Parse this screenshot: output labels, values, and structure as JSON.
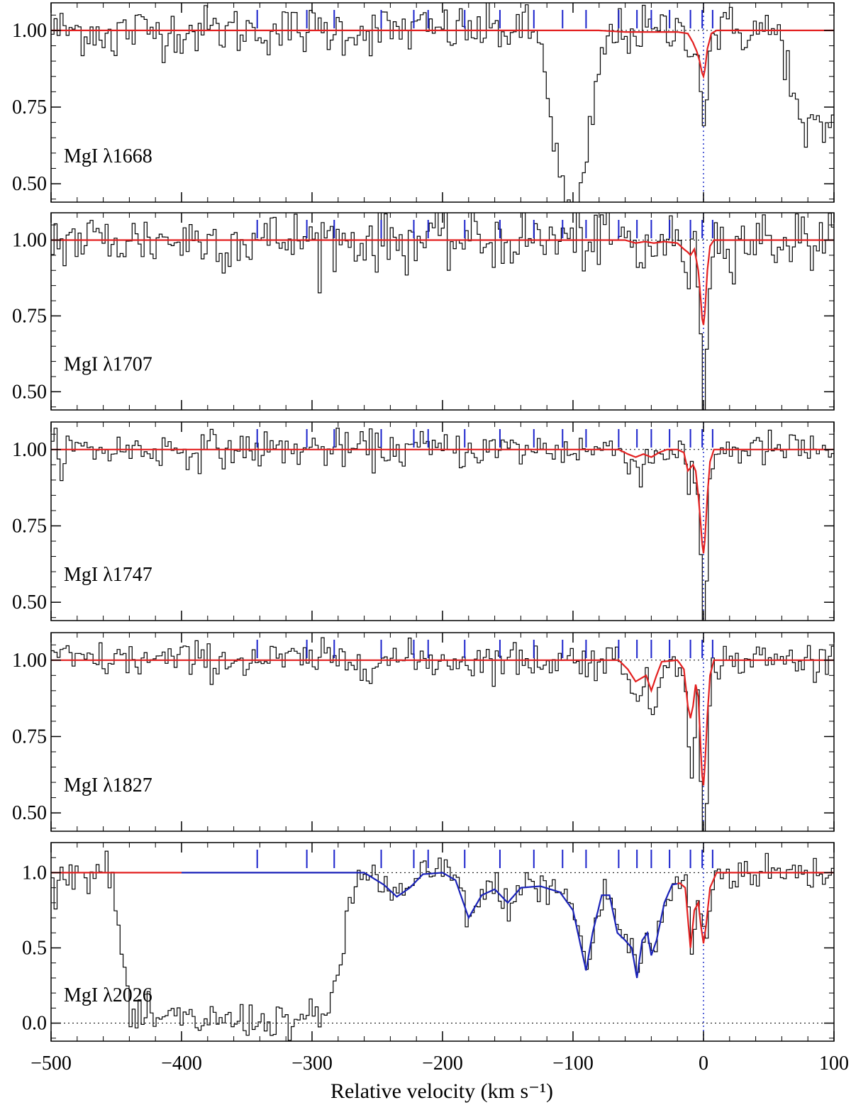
{
  "chart_data": {
    "type": "line",
    "xlabel": "Relative velocity (km s⁻¹)",
    "xlim": [
      -500,
      100
    ],
    "x_ticks": [
      -500,
      -400,
      -300,
      -200,
      -100,
      0,
      100
    ],
    "x_tick_labels": [
      "−500",
      "−400",
      "−300",
      "−200",
      "−100",
      "0",
      "100"
    ],
    "component_velocities": [
      -342,
      -304,
      -283,
      -247,
      -222,
      -211,
      -183,
      -156,
      -130,
      -108,
      -90,
      -65,
      -51,
      -40,
      -26,
      -10,
      -1,
      7
    ],
    "grid": false,
    "panels": [
      {
        "label": "MgI λ1668",
        "ylim": [
          0.44,
          1.09
        ],
        "y_ticks": [
          0.5,
          0.75,
          1.0
        ],
        "y_tick_labels": [
          "0.50",
          "0.75",
          "1.00"
        ],
        "model": {
          "name": "fit",
          "x": [
            -500,
            -80,
            -60,
            -40,
            -20,
            -12,
            -8,
            -5,
            -3,
            -1,
            0,
            1,
            3,
            6,
            10,
            100
          ],
          "y": [
            1.0,
            1.0,
            0.995,
            0.995,
            0.995,
            0.99,
            0.96,
            0.93,
            0.9,
            0.86,
            0.85,
            0.87,
            0.94,
            0.99,
            1.0,
            1.0
          ]
        },
        "noise": 0.04,
        "features": [
          {
            "center": -98,
            "depth": 0.55,
            "width": 10
          },
          {
            "center": -110,
            "depth": 0.15,
            "width": 8
          },
          {
            "center": -115,
            "depth": 0.12,
            "width": 6
          },
          {
            "center": 75,
            "depth": 0.3,
            "width": 8
          },
          {
            "center": 95,
            "depth": 0.3,
            "width": 10
          },
          {
            "center": -453,
            "depth": 0.17,
            "width": 1
          },
          {
            "center": -1,
            "depth": 0.12,
            "width": 3
          }
        ]
      },
      {
        "label": "MgI λ1707",
        "ylim": [
          0.44,
          1.09
        ],
        "y_ticks": [
          0.5,
          0.75,
          1.0
        ],
        "y_tick_labels": [
          "0.50",
          "0.75",
          "1.00"
        ],
        "model": {
          "name": "fit",
          "x": [
            -500,
            -60,
            -52,
            -45,
            -38,
            -30,
            -20,
            -15,
            -12,
            -10,
            -7,
            -4,
            -2,
            -1,
            0,
            1,
            3,
            5,
            8,
            100
          ],
          "y": [
            1.0,
            1.0,
            0.99,
            0.995,
            0.99,
            0.995,
            0.99,
            0.97,
            0.96,
            0.95,
            0.97,
            0.9,
            0.8,
            0.74,
            0.72,
            0.76,
            0.9,
            0.98,
            1.0,
            1.0
          ]
        },
        "noise": 0.05,
        "features": [
          {
            "center": -1,
            "depth": 0.26,
            "width": 2
          },
          {
            "center": -12,
            "depth": 0.06,
            "width": 3
          },
          {
            "center": -50,
            "depth": 0.08,
            "width": 3
          }
        ]
      },
      {
        "label": "MgI λ1747",
        "ylim": [
          0.44,
          1.09
        ],
        "y_ticks": [
          0.5,
          0.75,
          1.0
        ],
        "y_tick_labels": [
          "0.50",
          "0.75",
          "1.00"
        ],
        "model": {
          "name": "fit",
          "x": [
            -500,
            -65,
            -58,
            -52,
            -46,
            -40,
            -34,
            -28,
            -20,
            -15,
            -12,
            -10,
            -8,
            -6,
            -4,
            -2,
            -1,
            0,
            1,
            3,
            5,
            8,
            100
          ],
          "y": [
            1.0,
            1.0,
            0.985,
            0.975,
            0.985,
            0.975,
            0.99,
            1.0,
            1.0,
            0.99,
            0.93,
            0.94,
            0.95,
            0.93,
            0.85,
            0.75,
            0.69,
            0.66,
            0.7,
            0.85,
            0.96,
            1.0,
            1.0
          ]
        },
        "noise": 0.03,
        "features": [
          {
            "center": -1,
            "depth": 0.33,
            "width": 2
          },
          {
            "center": -11,
            "depth": 0.08,
            "width": 3
          },
          {
            "center": -50,
            "depth": 0.04,
            "width": 4
          }
        ]
      },
      {
        "label": "MgI λ1827",
        "ylim": [
          0.44,
          1.09
        ],
        "y_ticks": [
          0.5,
          0.75,
          1.0
        ],
        "y_tick_labels": [
          "0.50",
          "0.75",
          "1.00"
        ],
        "model": {
          "name": "fit",
          "x": [
            -500,
            -65,
            -58,
            -52,
            -48,
            -44,
            -40,
            -36,
            -32,
            -20,
            -15,
            -12,
            -10,
            -8,
            -6,
            -4,
            -2,
            -1,
            0,
            1,
            3,
            5,
            8,
            100
          ],
          "y": [
            1.0,
            1.0,
            0.97,
            0.93,
            0.94,
            0.95,
            0.9,
            0.95,
            0.995,
            1.0,
            0.97,
            0.85,
            0.81,
            0.85,
            0.92,
            0.88,
            0.7,
            0.62,
            0.59,
            0.65,
            0.82,
            0.95,
            1.0,
            1.0
          ]
        },
        "noise": 0.03,
        "features": [
          {
            "center": -1,
            "depth": 0.4,
            "width": 2
          },
          {
            "center": -10,
            "depth": 0.18,
            "width": 2
          },
          {
            "center": -40,
            "depth": 0.1,
            "width": 3
          },
          {
            "center": -50,
            "depth": 0.07,
            "width": 3
          }
        ]
      },
      {
        "label": "MgI λ2026",
        "ylim": [
          -0.12,
          1.2
        ],
        "y_ticks": [
          0.0,
          0.5,
          1.0
        ],
        "y_tick_labels": [
          "0.0",
          "0.5",
          "1.0"
        ],
        "zero_line": true,
        "model": {
          "name": "fit",
          "x": [
            -500,
            -400,
            -260,
            -245,
            -235,
            -225,
            -215,
            -200,
            -190,
            -180,
            -170,
            -160,
            -150,
            -140,
            -125,
            -110,
            -100,
            -95,
            -90,
            -85,
            -78,
            -72,
            -66,
            -60,
            -55,
            -51,
            -47,
            -43,
            -40,
            -36,
            -30,
            -24,
            -18,
            -14,
            -10,
            -7,
            -4,
            -2,
            0,
            2,
            5,
            10,
            100
          ],
          "y": [
            1.0,
            1.0,
            1.0,
            0.92,
            0.84,
            0.9,
            0.99,
            1.0,
            0.95,
            0.7,
            0.85,
            0.89,
            0.8,
            0.9,
            0.91,
            0.87,
            0.75,
            0.55,
            0.35,
            0.6,
            0.85,
            0.85,
            0.6,
            0.55,
            0.5,
            0.3,
            0.55,
            0.6,
            0.45,
            0.55,
            0.8,
            0.92,
            0.93,
            0.9,
            0.5,
            0.75,
            0.8,
            0.65,
            0.53,
            0.65,
            0.9,
            1.0,
            1.0
          ]
        },
        "noise": 0.06,
        "trough": {
          "start": -440,
          "end": -290
        }
      }
    ]
  }
}
